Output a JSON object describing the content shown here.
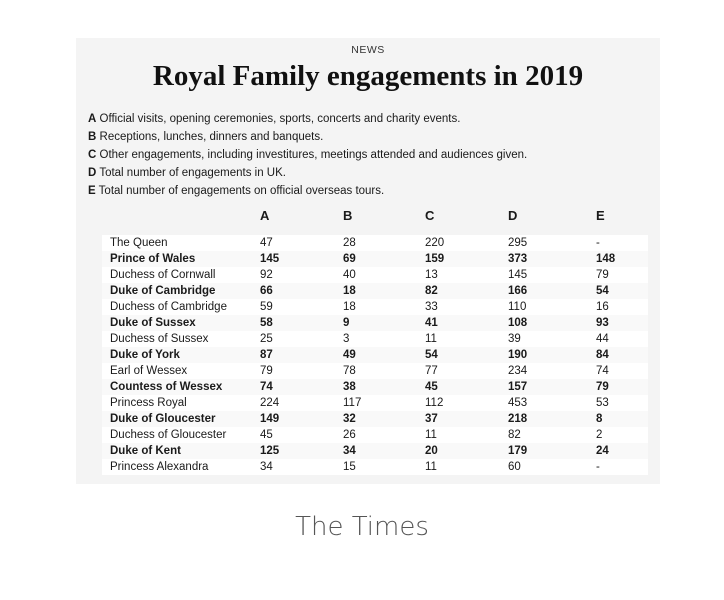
{
  "kicker": "NEWS",
  "headline": "Royal Family engagements in 2019",
  "legend": [
    {
      "key": "A",
      "text": "Official visits, opening ceremonies, sports, concerts and charity events."
    },
    {
      "key": "B",
      "text": "Receptions, lunches, dinners and banquets."
    },
    {
      "key": "C",
      "text": "Other engagements, including investitures, meetings attended and audiences given."
    },
    {
      "key": "D",
      "text": "Total number of engagements in UK."
    },
    {
      "key": "E",
      "text": "Total number of engagements on official overseas tours."
    }
  ],
  "columns": [
    "A",
    "B",
    "C",
    "D",
    "E"
  ],
  "rows": [
    {
      "name": "The Queen",
      "a": "47",
      "b": "28",
      "c": "220",
      "d": "295",
      "e": "-",
      "bold": false
    },
    {
      "name": "Prince of Wales",
      "a": "145",
      "b": "69",
      "c": "159",
      "d": "373",
      "e": "148",
      "bold": true
    },
    {
      "name": "Duchess of Cornwall",
      "a": "92",
      "b": "40",
      "c": "13",
      "d": "145",
      "e": "79",
      "bold": false
    },
    {
      "name": "Duke of Cambridge",
      "a": "66",
      "b": "18",
      "c": "82",
      "d": "166",
      "e": "54",
      "bold": true
    },
    {
      "name": "Duchess of Cambridge",
      "a": "59",
      "b": "18",
      "c": "33",
      "d": "110",
      "e": "16",
      "bold": false
    },
    {
      "name": "Duke of Sussex",
      "a": "58",
      "b": "9",
      "c": "41",
      "d": "108",
      "e": "93",
      "bold": true
    },
    {
      "name": "Duchess of Sussex",
      "a": "25",
      "b": "3",
      "c": "11",
      "d": "39",
      "e": "44",
      "bold": false
    },
    {
      "name": "Duke of York",
      "a": "87",
      "b": "49",
      "c": "54",
      "d": "190",
      "e": "84",
      "bold": true
    },
    {
      "name": "Earl of Wessex",
      "a": "79",
      "b": "78",
      "c": "77",
      "d": "234",
      "e": "74",
      "bold": false
    },
    {
      "name": "Countess of Wessex",
      "a": "74",
      "b": "38",
      "c": "45",
      "d": "157",
      "e": "79",
      "bold": true
    },
    {
      "name": "Princess Royal",
      "a": "224",
      "b": "117",
      "c": "112",
      "d": "453",
      "e": "53",
      "bold": false
    },
    {
      "name": "Duke of Gloucester",
      "a": "149",
      "b": "32",
      "c": "37",
      "d": "218",
      "e": "8",
      "bold": true
    },
    {
      "name": "Duchess of Gloucester",
      "a": "45",
      "b": "26",
      "c": "11",
      "d": "82",
      "e": "2",
      "bold": false
    },
    {
      "name": "Duke of Kent",
      "a": "125",
      "b": "34",
      "c": "20",
      "d": "179",
      "e": "24",
      "bold": true
    },
    {
      "name": "Princess Alexandra",
      "a": "34",
      "b": "15",
      "c": "11",
      "d": "60",
      "e": "-",
      "bold": false
    }
  ],
  "source": "The Times"
}
